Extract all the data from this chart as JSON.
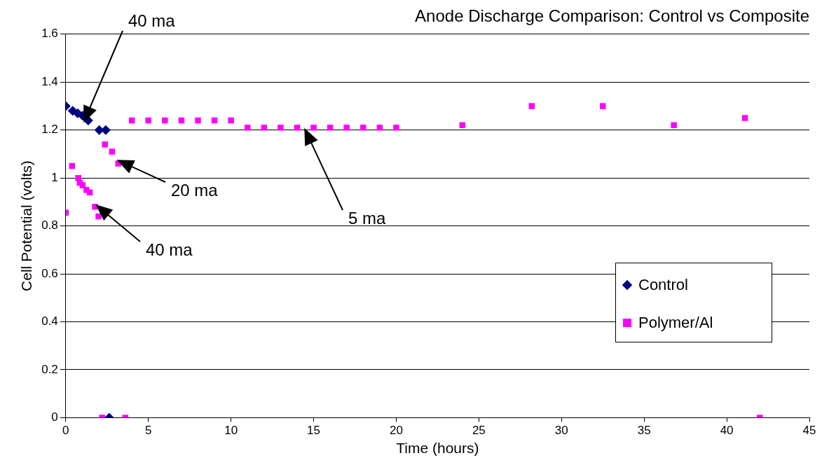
{
  "chart_data": {
    "type": "scatter",
    "title": "Anode Discharge Comparison: Control vs Composite",
    "xlabel": "Time (hours)",
    "ylabel": "Cell Potential (volts)",
    "xlim": [
      0,
      45
    ],
    "xticks": [
      0,
      5,
      10,
      15,
      20,
      25,
      30,
      35,
      40,
      45
    ],
    "ylim": [
      0,
      1.6
    ],
    "yticks": [
      0,
      0.2,
      0.4,
      0.6,
      0.8,
      1,
      1.2,
      1.4,
      1.6
    ],
    "grid": "y",
    "legend": "right",
    "series": [
      {
        "name": "Control",
        "color": "#000080",
        "marker": "diamond",
        "x": [
          0,
          0.42,
          0.72,
          1.02,
          1.36,
          2.03,
          2.42,
          2.63
        ],
        "values": [
          1.3,
          1.28,
          1.27,
          1.26,
          1.24,
          1.2,
          1.2,
          0
        ]
      },
      {
        "name": "Polymer/Al",
        "color": "#ff00ff",
        "marker": "square",
        "x": [
          0,
          0.38,
          0.76,
          0.85,
          1.02,
          1.25,
          1.45,
          1.77,
          1.98,
          2.37,
          2.8,
          3.18,
          4,
          5,
          6,
          7,
          8,
          9,
          10,
          11,
          12,
          13,
          14,
          15,
          16,
          17,
          18,
          19,
          20,
          24,
          28.2,
          32.5,
          36.8,
          41.1,
          2.2,
          3.6,
          42
        ],
        "values": [
          0.855,
          1.05,
          1.0,
          0.98,
          0.97,
          0.95,
          0.94,
          0.88,
          0.84,
          1.14,
          1.11,
          1.06,
          1.24,
          1.24,
          1.24,
          1.24,
          1.24,
          1.24,
          1.24,
          1.21,
          1.21,
          1.21,
          1.21,
          1.21,
          1.21,
          1.21,
          1.21,
          1.21,
          1.21,
          1.22,
          1.3,
          1.3,
          1.22,
          1.25,
          0,
          0,
          0
        ]
      }
    ],
    "annotations": [
      "40 ma",
      "20 ma",
      "5 ma",
      "40 ma"
    ]
  }
}
